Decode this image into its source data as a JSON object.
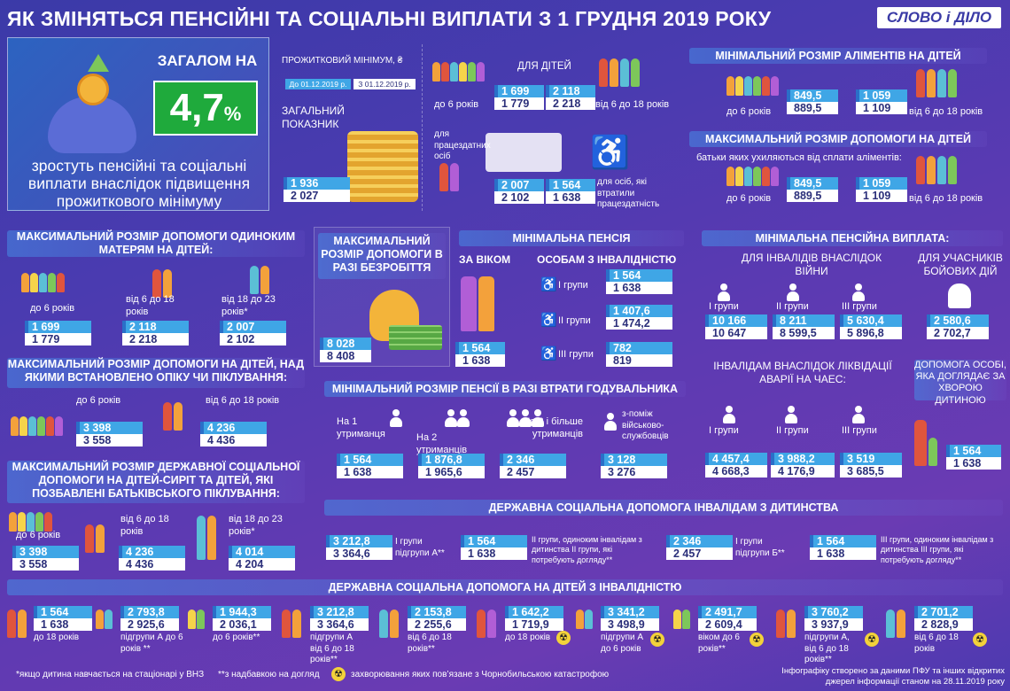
{
  "title": "ЯК ЗМІНЯТЬСЯ ПЕНСІЙНІ ТА СОЦІАЛЬНІ ВИПЛАТИ З 1 ГРУДНЯ 2019 РОКУ",
  "logo": "СЛОВО і ДІЛО",
  "intro": {
    "label": "ЗАГАЛОМ НА",
    "percent": "4,7",
    "pct_sign": "%",
    "text": "зростуть пенсійні та соціальні виплати внаслідок підвищення прожиткового мінімуму"
  },
  "subsistence": {
    "label": "ПРОЖИТКОВИЙ МІНІМУМ, ₴",
    "before": "До 01.12.2019 р.",
    "after": "З 01.12.2019 р.",
    "general_label": "ЗАГАЛЬНИЙ ПОКАЗНИК",
    "general": [
      "1 936",
      "2 027"
    ],
    "children_label": "ДЛЯ ДІТЕЙ",
    "under6": "до 6 років",
    "u6": [
      "1 699",
      "1 779"
    ],
    "age6_18": "від 6 до 18 років",
    "a6": [
      "2 118",
      "2 218"
    ],
    "able_label": "для працездатних осіб",
    "able": [
      "2 007",
      "2 102"
    ],
    "disabled_label": "для осіб, які втратили працездатність",
    "disabled": [
      "1 564",
      "1 638"
    ]
  },
  "alimony_min": {
    "title": "МІНІМАЛЬНИЙ РОЗМІР АЛІМЕНТІВ НА ДІТЕЙ",
    "under6": "до 6 років",
    "u6": [
      "849,5",
      "889,5"
    ],
    "age": "від 6 до 18 років",
    "a6": [
      "1 059",
      "1 109"
    ]
  },
  "alimony_max": {
    "title": "МАКСИМАЛЬНИЙ РОЗМІР ДОПОМОГИ НА ДІТЕЙ",
    "subtitle": "батьки яких ухиляються від сплати аліментів:",
    "under6": "до 6 років",
    "u6": [
      "849,5",
      "889,5"
    ],
    "age": "від 6 до 18 років",
    "a6": [
      "1 059",
      "1 109"
    ]
  },
  "single_mothers": {
    "title": "МАКСИМАЛЬНИЙ РОЗМІР ДОПОМОГИ ОДИНОКИМ МАТЕРЯМ НА ДІТЕЙ:",
    "g1": "до 6 років",
    "v1": [
      "1 699",
      "1 779"
    ],
    "g2": "від 6 до 18 років",
    "v2": [
      "2 118",
      "2 218"
    ],
    "g3": "від 18 до 23 років*",
    "v3": [
      "2 007",
      "2 102"
    ]
  },
  "unemployment": {
    "title": "МАКСИМАЛЬНИЙ РОЗМІР ДОПОМОГИ В РАЗІ БЕЗРОБІТТЯ",
    "v": [
      "8 028",
      "8 408"
    ]
  },
  "min_pension": {
    "title": "МІНІМАЛЬНА ПЕНСІЯ",
    "age_label": "ЗА ВІКОМ",
    "age": [
      "1 564",
      "1 638"
    ],
    "dis_label": "ОСОБАМ З ІНВАЛІДНІСТЮ",
    "g1": "I групи",
    "v1": [
      "1 564",
      "1 638"
    ],
    "g2": "II групи",
    "v2": [
      "1 407,6",
      "1 474,2"
    ],
    "g3": "III групи",
    "v3": [
      "782",
      "819"
    ]
  },
  "min_pension_payment": {
    "title": "МІНІМАЛЬНА ПЕНСІЙНА ВИПЛАТА:",
    "war_label": "ДЛЯ ІНВАЛІДІВ ВНАСЛІДОК ВІЙНИ",
    "g1": "I групи",
    "v1": [
      "10 166",
      "10 647"
    ],
    "g2": "II групи",
    "v2": [
      "8 211",
      "8 599,5"
    ],
    "g3": "III групи",
    "v3": [
      "5 630,4",
      "5 896,8"
    ],
    "combat_label": "ДЛЯ УЧАСНИКІВ БОЙОВИХ ДІЙ",
    "combat": [
      "2 580,6",
      "2 702,7"
    ]
  },
  "guardianship": {
    "title": "МАКСИМАЛЬНИЙ РОЗМІР ДОПОМОГИ НА ДІТЕЙ, НАД ЯКИМИ ВСТАНОВЛЕНО ОПІКУ ЧИ ПІКЛУВАННЯ:",
    "g1": "до 6 років",
    "v1": [
      "3 398",
      "3 558"
    ],
    "g2": "від 6 до 18 років",
    "v2": [
      "4 236",
      "4 436"
    ]
  },
  "survivor": {
    "title": "МІНІМАЛЬНИЙ РОЗМІР ПЕНСІЇ В РАЗІ ВТРАТИ ГОДУВАЛЬНИКА",
    "c1": "На 1 утриманця",
    "v1": [
      "1 564",
      "1 638"
    ],
    "c2": "На 2 утриманців",
    "v2": [
      "1 876,8",
      "1 965,6"
    ],
    "c3": "На 3 і більше утриманців",
    "v3": [
      "2 346",
      "2 457"
    ],
    "c4": "з-поміж військово-службовців",
    "v4": [
      "3 128",
      "3 276"
    ]
  },
  "chernobyl": {
    "title": "ІНВАЛІДАМ ВНАСЛІДОК ЛІКВІДАЦІЇ АВАРІЇ НА ЧАЕС:",
    "g1": "I групи",
    "v1": [
      "4 457,4",
      "4 668,3"
    ],
    "g2": "II групи",
    "v2": [
      "3 988,2",
      "4 176,9"
    ],
    "g3": "III групи",
    "v3": [
      "3 519",
      "3 685,5"
    ]
  },
  "caregiver": {
    "title": "ДОПОМОГА ОСОБІ, ЯКА ДОГЛЯДАЄ ЗА ХВОРОЮ ДИТИНОЮ",
    "v": [
      "1 564",
      "1 638"
    ]
  },
  "orphans": {
    "title": "МАКСИМАЛЬНИЙ РОЗМІР ДЕРЖАВНОЇ СОЦІАЛЬНОЇ ДОПОМОГИ НА ДІТЕЙ-СИРІТ ТА ДІТЕЙ, ЯКІ ПОЗБАВЛЕНІ БАТЬКІВСЬКОГО ПІКЛУВАННЯ:",
    "g1": "до 6 років",
    "v1": [
      "3 398",
      "3 558"
    ],
    "g2": "від 6 до 18 років",
    "v2": [
      "4 236",
      "4 436"
    ],
    "g3": "від 18 до 23 років*",
    "v3": [
      "4 014",
      "4 204"
    ]
  },
  "childhood_disabled": {
    "title": "ДЕРЖАВНА СОЦІАЛЬНА ДОПОМОГА ІНВАЛІДАМ З ДИТИНСТВА",
    "i1": "I групи підгрупи А**",
    "v1": [
      "3 212,8",
      "3 364,6"
    ],
    "i2": "II групи, одиноким інвалідам з дитинства II групи, які потребують догляду**",
    "v2": [
      "1 564",
      "1 638"
    ],
    "i3": "I групи підгрупи Б**",
    "v3": [
      "2 346",
      "2 457"
    ],
    "i4": "III групи, одиноким інвалідам з дитинства III групи, які потребують догляду**",
    "v4": [
      "1 564",
      "1 638"
    ]
  },
  "children_disabled": {
    "title": "ДЕРЖАВНА СОЦІАЛЬНА ДОПОМОГА НА ДІТЕЙ З ІНВАЛІДНІСТЮ",
    "items": [
      {
        "label": "до 18 років",
        "v": [
          "1 564",
          "1 638"
        ]
      },
      {
        "label": "підгрупи А до 6 років **",
        "v": [
          "2 793,8",
          "2 925,6"
        ]
      },
      {
        "label": "до 6 років**",
        "v": [
          "1 944,3",
          "2 036,1"
        ]
      },
      {
        "label": "підгрупи А від 6 до 18 років**",
        "v": [
          "3 212,8",
          "3 364,6"
        ]
      },
      {
        "label": "від 6 до 18 років**",
        "v": [
          "2 153,8",
          "2 255,6"
        ]
      },
      {
        "label": "до 18 років",
        "v": [
          "1 642,2",
          "1 719,9"
        ]
      },
      {
        "label": "підгрупи А до 6 років",
        "v": [
          "3 341,2",
          "3 498,9"
        ]
      },
      {
        "label": "віком до 6 років**",
        "v": [
          "2 491,7",
          "2 609,4"
        ]
      },
      {
        "label": "підгрупи А, від 6 до 18 років**",
        "v": [
          "3 760,2",
          "3 937,9"
        ]
      },
      {
        "label": "від 6 до 18 років",
        "v": [
          "2 701,2",
          "2 828,9"
        ]
      }
    ]
  },
  "footer": {
    "n1": "*якщо дитина навчається на стаціонарі у ВНЗ",
    "n2": "**з надбавкою на догляд",
    "n3": "захворювання яких пов’язане з Чорнобильською катастрофою",
    "source": "Інфографіку створено за даними ПФУ та інших відкритих джерел інформації станом на 28.11.2019 року"
  },
  "colors": {
    "accent_blue": "#3fa6e6",
    "green": "#1faa3c",
    "radiation": "#f3d23a"
  },
  "icons": {
    "radiation": "☢",
    "wheelchair": "♿"
  }
}
